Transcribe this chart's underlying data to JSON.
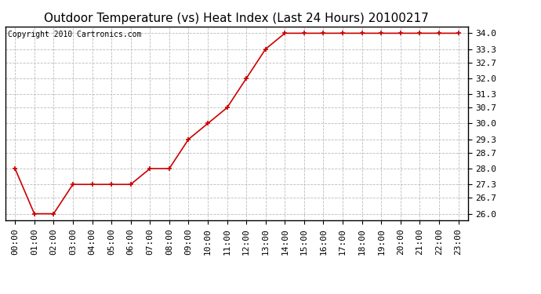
{
  "title": "Outdoor Temperature (vs) Heat Index (Last 24 Hours) 20100217",
  "copyright_text": "Copyright 2010 Cartronics.com",
  "x_labels": [
    "00:00",
    "01:00",
    "02:00",
    "03:00",
    "04:00",
    "05:00",
    "06:00",
    "07:00",
    "08:00",
    "09:00",
    "10:00",
    "11:00",
    "12:00",
    "13:00",
    "14:00",
    "15:00",
    "16:00",
    "17:00",
    "18:00",
    "19:00",
    "20:00",
    "21:00",
    "22:00",
    "23:00"
  ],
  "y_values": [
    28.0,
    26.0,
    26.0,
    27.3,
    27.3,
    27.3,
    27.3,
    28.0,
    28.0,
    29.3,
    30.0,
    30.7,
    32.0,
    33.3,
    34.0,
    34.0,
    34.0,
    34.0,
    34.0,
    34.0,
    34.0,
    34.0,
    34.0,
    34.0
  ],
  "y_ticks": [
    26.0,
    26.7,
    27.3,
    28.0,
    28.7,
    29.3,
    30.0,
    30.7,
    31.3,
    32.0,
    32.7,
    33.3,
    34.0
  ],
  "ylim": [
    25.7,
    34.3
  ],
  "line_color": "#cc0000",
  "marker": "+",
  "marker_color": "#cc0000",
  "background_color": "#ffffff",
  "grid_color": "#bbbbbb",
  "title_fontsize": 11,
  "copyright_fontsize": 7,
  "tick_fontsize": 8
}
